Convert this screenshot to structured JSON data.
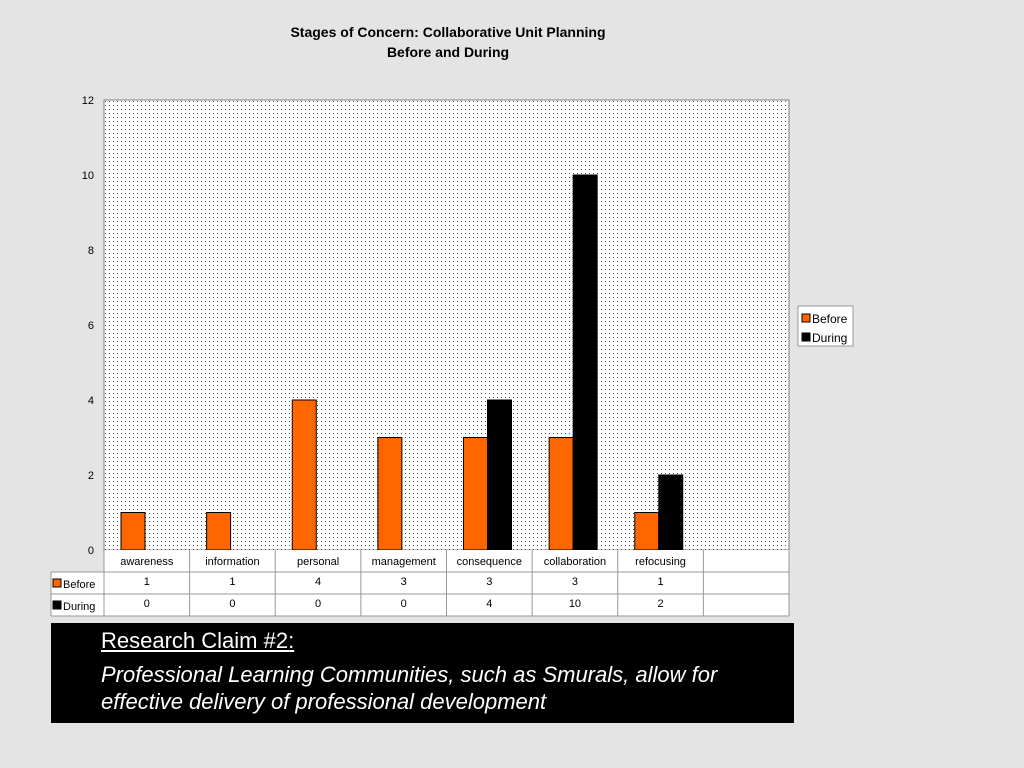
{
  "chart_data": {
    "type": "bar",
    "title": "Stages of Concern: Collaborative Unit Planning",
    "subtitle": "Before and During",
    "categories": [
      "awareness",
      "information",
      "personal",
      "management",
      "consequence",
      "collaboration",
      "refocusing"
    ],
    "series": [
      {
        "name": "Before",
        "color": "#ff6600",
        "values": [
          1,
          1,
          4,
          3,
          3,
          3,
          1
        ]
      },
      {
        "name": "During",
        "color": "#000000",
        "values": [
          0,
          0,
          0,
          0,
          4,
          10,
          2
        ]
      }
    ],
    "ylim": [
      0,
      12
    ],
    "yticks": [
      "0",
      "2",
      "4",
      "6",
      "8",
      "10",
      "12"
    ],
    "grid": false,
    "legend_position": "right",
    "data_table": true
  },
  "claim": {
    "heading": "Research Claim #2:",
    "body": "Professional Learning Communities, such as Smurals, allow for effective delivery of professional development"
  }
}
